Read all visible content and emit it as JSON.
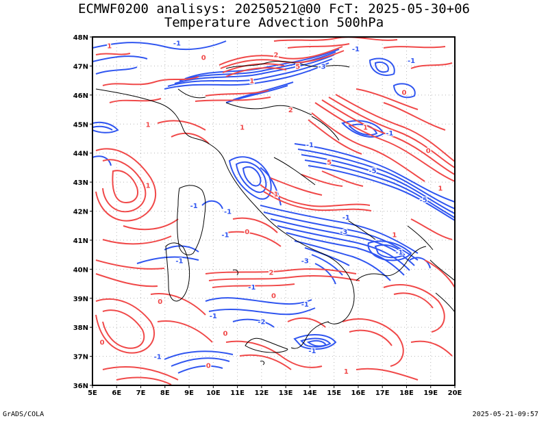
{
  "header": {
    "title_line1": "ECMWF0200 analisys: 20250521@00 FcT: 2025-05-30+06",
    "title_line2": "Temperature Advection 500hPa"
  },
  "footer": {
    "software": "GrADS/COLA",
    "timestamp": "2025-05-21-09:57"
  },
  "map": {
    "lon_labels": [
      "5E",
      "6E",
      "7E",
      "8E",
      "9E",
      "10E",
      "11E",
      "12E",
      "13E",
      "14E",
      "15E",
      "16E",
      "17E",
      "18E",
      "19E",
      "20E"
    ],
    "lat_labels": [
      "36N",
      "37N",
      "38N",
      "39N",
      "40N",
      "41N",
      "42N",
      "43N",
      "44N",
      "45N",
      "46N",
      "47N",
      "48N"
    ],
    "lon_range": [
      5,
      20
    ],
    "lat_range": [
      36,
      48
    ],
    "grid": true,
    "colors": {
      "warm_advection": "#f04848",
      "cold_advection": "#2f55f0",
      "coastline": "#000000",
      "grid": "#b4b4b4"
    },
    "contour_labels": [
      {
        "text": "1",
        "color": "warm",
        "lon": 5.7,
        "lat": 47.7
      },
      {
        "text": "0",
        "color": "warm",
        "lon": 9.6,
        "lat": 47.3
      },
      {
        "text": "-1",
        "color": "cold",
        "lon": 8.5,
        "lat": 47.8
      },
      {
        "text": "2",
        "color": "warm",
        "lon": 12.6,
        "lat": 47.4
      },
      {
        "text": "5",
        "color": "warm",
        "lon": 13.5,
        "lat": 47.0
      },
      {
        "text": "1",
        "color": "warm",
        "lon": 11.6,
        "lat": 46.5
      },
      {
        "text": "-3",
        "color": "cold",
        "lon": 14.5,
        "lat": 47.0
      },
      {
        "text": "-1",
        "color": "cold",
        "lon": 15.9,
        "lat": 47.6
      },
      {
        "text": "0",
        "color": "warm",
        "lon": 17.9,
        "lat": 46.1
      },
      {
        "text": "-1",
        "color": "cold",
        "lon": 18.2,
        "lat": 47.2
      },
      {
        "text": "1",
        "color": "warm",
        "lon": 7.3,
        "lat": 45.0
      },
      {
        "text": "2",
        "color": "warm",
        "lon": 13.2,
        "lat": 45.5
      },
      {
        "text": "1",
        "color": "warm",
        "lon": 11.2,
        "lat": 44.9
      },
      {
        "text": "-1",
        "color": "cold",
        "lon": 14.0,
        "lat": 44.3
      },
      {
        "text": "1",
        "color": "warm",
        "lon": 16.3,
        "lat": 44.9
      },
      {
        "text": "-1",
        "color": "cold",
        "lon": 17.3,
        "lat": 44.7
      },
      {
        "text": "0",
        "color": "warm",
        "lon": 18.9,
        "lat": 44.1
      },
      {
        "text": "5",
        "color": "warm",
        "lon": 14.8,
        "lat": 43.7
      },
      {
        "text": "-5",
        "color": "cold",
        "lon": 16.6,
        "lat": 43.4
      },
      {
        "text": "1",
        "color": "warm",
        "lon": 19.4,
        "lat": 42.8
      },
      {
        "text": "-5",
        "color": "cold",
        "lon": 18.7,
        "lat": 42.4
      },
      {
        "text": "1",
        "color": "warm",
        "lon": 7.3,
        "lat": 42.9
      },
      {
        "text": "-1",
        "color": "cold",
        "lon": 9.2,
        "lat": 42.2
      },
      {
        "text": "-1",
        "color": "cold",
        "lon": 10.6,
        "lat": 42.0
      },
      {
        "text": "1",
        "color": "warm",
        "lon": 12.6,
        "lat": 42.6
      },
      {
        "text": "0",
        "color": "warm",
        "lon": 11.4,
        "lat": 41.3
      },
      {
        "text": "-1",
        "color": "cold",
        "lon": 10.5,
        "lat": 41.2
      },
      {
        "text": "-1",
        "color": "cold",
        "lon": 15.5,
        "lat": 41.8
      },
      {
        "text": "-3",
        "color": "cold",
        "lon": 15.4,
        "lat": 41.3
      },
      {
        "text": "1",
        "color": "warm",
        "lon": 17.5,
        "lat": 41.2
      },
      {
        "text": "-1",
        "color": "cold",
        "lon": 8.6,
        "lat": 40.3
      },
      {
        "text": "-3",
        "color": "cold",
        "lon": 13.8,
        "lat": 40.3
      },
      {
        "text": "-1",
        "color": "cold",
        "lon": 17.7,
        "lat": 40.6
      },
      {
        "text": "2",
        "color": "warm",
        "lon": 12.4,
        "lat": 39.9
      },
      {
        "text": "-1",
        "color": "cold",
        "lon": 11.6,
        "lat": 39.4
      },
      {
        "text": "0",
        "color": "warm",
        "lon": 12.5,
        "lat": 39.1
      },
      {
        "text": "0",
        "color": "warm",
        "lon": 7.8,
        "lat": 38.9
      },
      {
        "text": "-1",
        "color": "cold",
        "lon": 10.0,
        "lat": 38.4
      },
      {
        "text": "-2",
        "color": "cold",
        "lon": 12.0,
        "lat": 38.2
      },
      {
        "text": "-1",
        "color": "cold",
        "lon": 13.8,
        "lat": 38.8
      },
      {
        "text": "0",
        "color": "warm",
        "lon": 10.5,
        "lat": 37.8
      },
      {
        "text": "0",
        "color": "warm",
        "lon": 5.4,
        "lat": 37.5
      },
      {
        "text": "-1",
        "color": "cold",
        "lon": 7.7,
        "lat": 37.0
      },
      {
        "text": "-1",
        "color": "cold",
        "lon": 14.1,
        "lat": 37.2
      },
      {
        "text": "0",
        "color": "warm",
        "lon": 9.8,
        "lat": 36.7
      },
      {
        "text": "1",
        "color": "warm",
        "lon": 15.5,
        "lat": 36.5
      }
    ]
  }
}
